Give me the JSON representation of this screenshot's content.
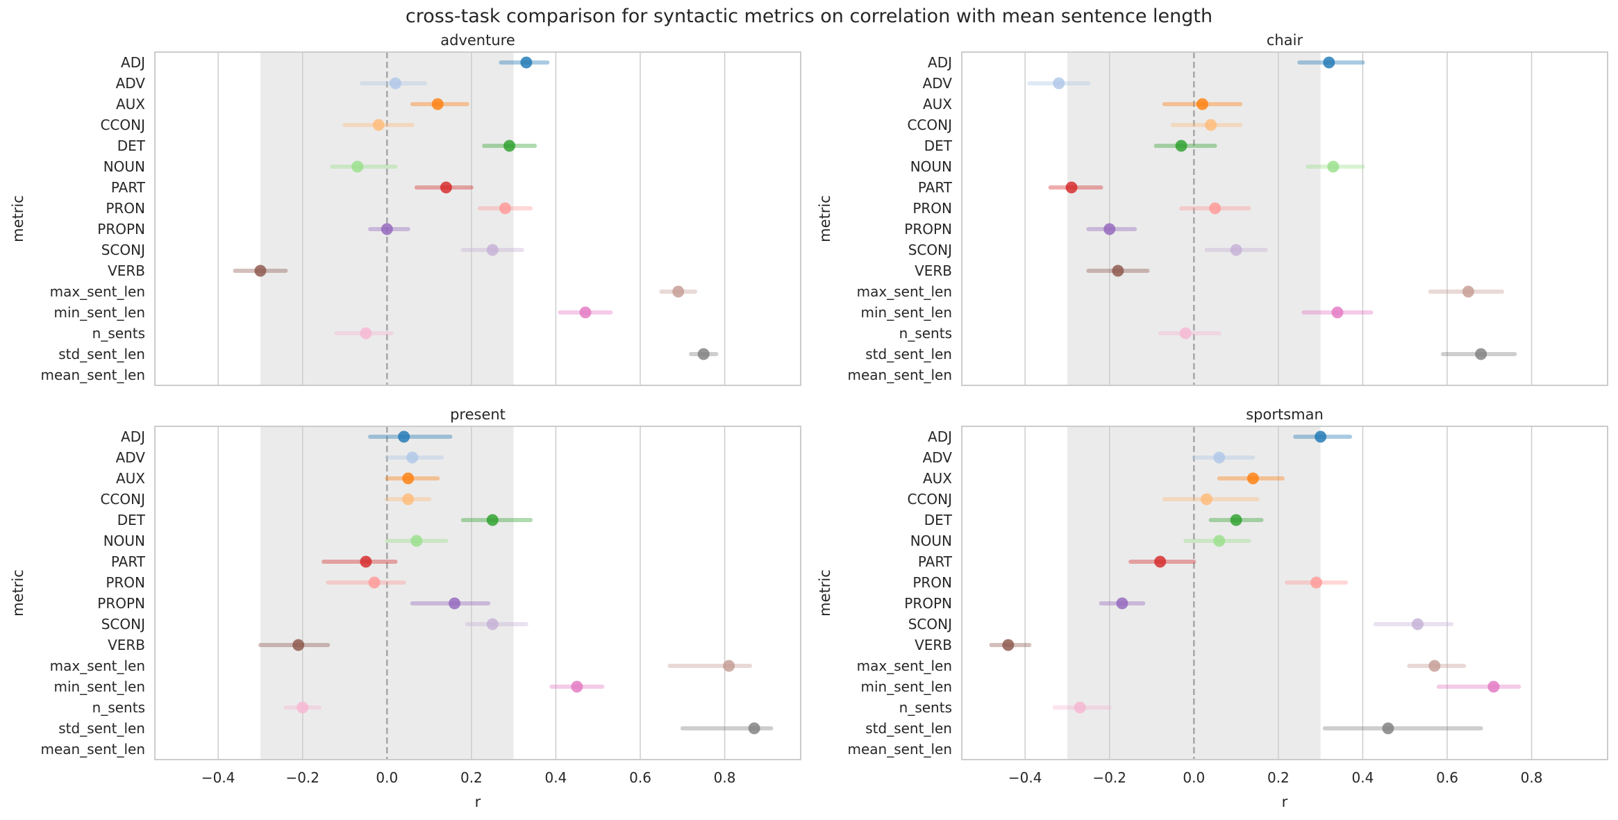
{
  "title": "cross-task comparison for syntactic metrics on correlation with mean sentence length",
  "chart_data": [
    {
      "type": "scatter",
      "subtype": "point-with-errorbar",
      "title": "adventure",
      "xlabel": "",
      "ylabel": "metric",
      "xlim": [
        -0.55,
        0.98
      ],
      "xticks": [],
      "shaded_region": [
        -0.3,
        0.3
      ],
      "reference_line": 0,
      "grid": true,
      "categories": [
        "ADJ",
        "ADV",
        "AUX",
        "CCONJ",
        "DET",
        "NOUN",
        "PART",
        "PRON",
        "PROPN",
        "SCONJ",
        "VERB",
        "max_sent_len",
        "min_sent_len",
        "n_sents",
        "std_sent_len",
        "mean_sent_len"
      ],
      "points": [
        {
          "metric": "ADJ",
          "r": 0.33,
          "low": 0.27,
          "high": 0.38
        },
        {
          "metric": "ADV",
          "r": 0.02,
          "low": -0.06,
          "high": 0.09
        },
        {
          "metric": "AUX",
          "r": 0.12,
          "low": 0.06,
          "high": 0.19
        },
        {
          "metric": "CCONJ",
          "r": -0.02,
          "low": -0.1,
          "high": 0.06
        },
        {
          "metric": "DET",
          "r": 0.29,
          "low": 0.23,
          "high": 0.35
        },
        {
          "metric": "NOUN",
          "r": -0.07,
          "low": -0.13,
          "high": 0.02
        },
        {
          "metric": "PART",
          "r": 0.14,
          "low": 0.07,
          "high": 0.2
        },
        {
          "metric": "PRON",
          "r": 0.28,
          "low": 0.22,
          "high": 0.34
        },
        {
          "metric": "PROPN",
          "r": 0.0,
          "low": -0.04,
          "high": 0.05
        },
        {
          "metric": "SCONJ",
          "r": 0.25,
          "low": 0.18,
          "high": 0.32
        },
        {
          "metric": "VERB",
          "r": -0.3,
          "low": -0.36,
          "high": -0.24
        },
        {
          "metric": "max_sent_len",
          "r": 0.69,
          "low": 0.65,
          "high": 0.73
        },
        {
          "metric": "min_sent_len",
          "r": 0.47,
          "low": 0.41,
          "high": 0.53
        },
        {
          "metric": "n_sents",
          "r": -0.05,
          "low": -0.12,
          "high": 0.01
        },
        {
          "metric": "std_sent_len",
          "r": 0.75,
          "low": 0.72,
          "high": 0.78
        }
      ]
    },
    {
      "type": "scatter",
      "subtype": "point-with-errorbar",
      "title": "chair",
      "xlabel": "",
      "ylabel": "metric",
      "xlim": [
        -0.55,
        0.98
      ],
      "xticks": [],
      "shaded_region": [
        -0.3,
        0.3
      ],
      "reference_line": 0,
      "grid": true,
      "categories": [
        "ADJ",
        "ADV",
        "AUX",
        "CCONJ",
        "DET",
        "NOUN",
        "PART",
        "PRON",
        "PROPN",
        "SCONJ",
        "VERB",
        "max_sent_len",
        "min_sent_len",
        "n_sents",
        "std_sent_len",
        "mean_sent_len"
      ],
      "points": [
        {
          "metric": "ADJ",
          "r": 0.32,
          "low": 0.25,
          "high": 0.4
        },
        {
          "metric": "ADV",
          "r": -0.32,
          "low": -0.39,
          "high": -0.25
        },
        {
          "metric": "AUX",
          "r": 0.02,
          "low": -0.07,
          "high": 0.11
        },
        {
          "metric": "CCONJ",
          "r": 0.04,
          "low": -0.05,
          "high": 0.11
        },
        {
          "metric": "DET",
          "r": -0.03,
          "low": -0.09,
          "high": 0.05
        },
        {
          "metric": "NOUN",
          "r": 0.33,
          "low": 0.27,
          "high": 0.4
        },
        {
          "metric": "PART",
          "r": -0.29,
          "low": -0.34,
          "high": -0.22
        },
        {
          "metric": "PRON",
          "r": 0.05,
          "low": -0.03,
          "high": 0.13
        },
        {
          "metric": "PROPN",
          "r": -0.2,
          "low": -0.25,
          "high": -0.14
        },
        {
          "metric": "SCONJ",
          "r": 0.1,
          "low": 0.03,
          "high": 0.17
        },
        {
          "metric": "VERB",
          "r": -0.18,
          "low": -0.25,
          "high": -0.11
        },
        {
          "metric": "max_sent_len",
          "r": 0.65,
          "low": 0.56,
          "high": 0.73
        },
        {
          "metric": "min_sent_len",
          "r": 0.34,
          "low": 0.26,
          "high": 0.42
        },
        {
          "metric": "n_sents",
          "r": -0.02,
          "low": -0.08,
          "high": 0.06
        },
        {
          "metric": "std_sent_len",
          "r": 0.68,
          "low": 0.59,
          "high": 0.76
        }
      ]
    },
    {
      "type": "scatter",
      "subtype": "point-with-errorbar",
      "title": "present",
      "xlabel": "r",
      "ylabel": "metric",
      "xlim": [
        -0.55,
        0.98
      ],
      "xticks": [
        "−0.4",
        "−0.2",
        "0.0",
        "0.2",
        "0.4",
        "0.6",
        "0.8"
      ],
      "shaded_region": [
        -0.3,
        0.3
      ],
      "reference_line": 0,
      "grid": true,
      "categories": [
        "ADJ",
        "ADV",
        "AUX",
        "CCONJ",
        "DET",
        "NOUN",
        "PART",
        "PRON",
        "PROPN",
        "SCONJ",
        "VERB",
        "max_sent_len",
        "min_sent_len",
        "n_sents",
        "std_sent_len",
        "mean_sent_len"
      ],
      "points": [
        {
          "metric": "ADJ",
          "r": 0.04,
          "low": -0.04,
          "high": 0.15
        },
        {
          "metric": "ADV",
          "r": 0.06,
          "low": 0.0,
          "high": 0.13
        },
        {
          "metric": "AUX",
          "r": 0.05,
          "low": 0.0,
          "high": 0.12
        },
        {
          "metric": "CCONJ",
          "r": 0.05,
          "low": 0.0,
          "high": 0.1
        },
        {
          "metric": "DET",
          "r": 0.25,
          "low": 0.18,
          "high": 0.34
        },
        {
          "metric": "NOUN",
          "r": 0.07,
          "low": 0.0,
          "high": 0.14
        },
        {
          "metric": "PART",
          "r": -0.05,
          "low": -0.15,
          "high": 0.02
        },
        {
          "metric": "PRON",
          "r": -0.03,
          "low": -0.14,
          "high": 0.04
        },
        {
          "metric": "PROPN",
          "r": 0.16,
          "low": 0.06,
          "high": 0.24
        },
        {
          "metric": "SCONJ",
          "r": 0.25,
          "low": 0.19,
          "high": 0.33
        },
        {
          "metric": "VERB",
          "r": -0.21,
          "low": -0.3,
          "high": -0.14
        },
        {
          "metric": "max_sent_len",
          "r": 0.81,
          "low": 0.67,
          "high": 0.86
        },
        {
          "metric": "min_sent_len",
          "r": 0.45,
          "low": 0.39,
          "high": 0.51
        },
        {
          "metric": "n_sents",
          "r": -0.2,
          "low": -0.24,
          "high": -0.16
        },
        {
          "metric": "std_sent_len",
          "r": 0.87,
          "low": 0.7,
          "high": 0.91
        }
      ]
    },
    {
      "type": "scatter",
      "subtype": "point-with-errorbar",
      "title": "sportsman",
      "xlabel": "r",
      "ylabel": "metric",
      "xlim": [
        -0.55,
        0.98
      ],
      "xticks": [
        "−0.4",
        "−0.2",
        "0.0",
        "0.2",
        "0.4",
        "0.6",
        "0.8"
      ],
      "shaded_region": [
        -0.3,
        0.3
      ],
      "reference_line": 0,
      "grid": true,
      "categories": [
        "ADJ",
        "ADV",
        "AUX",
        "CCONJ",
        "DET",
        "NOUN",
        "PART",
        "PRON",
        "PROPN",
        "SCONJ",
        "VERB",
        "max_sent_len",
        "min_sent_len",
        "n_sents",
        "std_sent_len",
        "mean_sent_len"
      ],
      "points": [
        {
          "metric": "ADJ",
          "r": 0.3,
          "low": 0.24,
          "high": 0.37
        },
        {
          "metric": "ADV",
          "r": 0.06,
          "low": 0.0,
          "high": 0.14
        },
        {
          "metric": "AUX",
          "r": 0.14,
          "low": 0.06,
          "high": 0.21
        },
        {
          "metric": "CCONJ",
          "r": 0.03,
          "low": -0.07,
          "high": 0.15
        },
        {
          "metric": "DET",
          "r": 0.1,
          "low": 0.04,
          "high": 0.16
        },
        {
          "metric": "NOUN",
          "r": 0.06,
          "low": -0.02,
          "high": 0.13
        },
        {
          "metric": "PART",
          "r": -0.08,
          "low": -0.15,
          "high": 0.0
        },
        {
          "metric": "PRON",
          "r": 0.29,
          "low": 0.22,
          "high": 0.36
        },
        {
          "metric": "PROPN",
          "r": -0.17,
          "low": -0.22,
          "high": -0.12
        },
        {
          "metric": "SCONJ",
          "r": 0.53,
          "low": 0.43,
          "high": 0.61
        },
        {
          "metric": "VERB",
          "r": -0.44,
          "low": -0.48,
          "high": -0.39
        },
        {
          "metric": "max_sent_len",
          "r": 0.57,
          "low": 0.51,
          "high": 0.64
        },
        {
          "metric": "min_sent_len",
          "r": 0.71,
          "low": 0.58,
          "high": 0.77
        },
        {
          "metric": "n_sents",
          "r": -0.27,
          "low": -0.33,
          "high": -0.2
        },
        {
          "metric": "std_sent_len",
          "r": 0.46,
          "low": 0.31,
          "high": 0.68
        }
      ]
    }
  ],
  "colors": {
    "ADJ": "#1f77b4",
    "ADV": "#aec7e8",
    "AUX": "#ff7f0e",
    "CCONJ": "#ffbb78",
    "DET": "#2ca02c",
    "NOUN": "#98df8a",
    "PART": "#d62728",
    "PRON": "#ff9896",
    "PROPN": "#9467bd",
    "SCONJ": "#c5b0d5",
    "VERB": "#8c564b",
    "max_sent_len": "#c49c94",
    "min_sent_len": "#e377c2",
    "n_sents": "#f7b6d2",
    "std_sent_len": "#7f7f7f",
    "mean_sent_len": "#c7c7c7",
    "shade": "#ebebeb",
    "grid": "#cccccc",
    "frame": "#cccccc",
    "zero_line": "#a6a6a6"
  }
}
